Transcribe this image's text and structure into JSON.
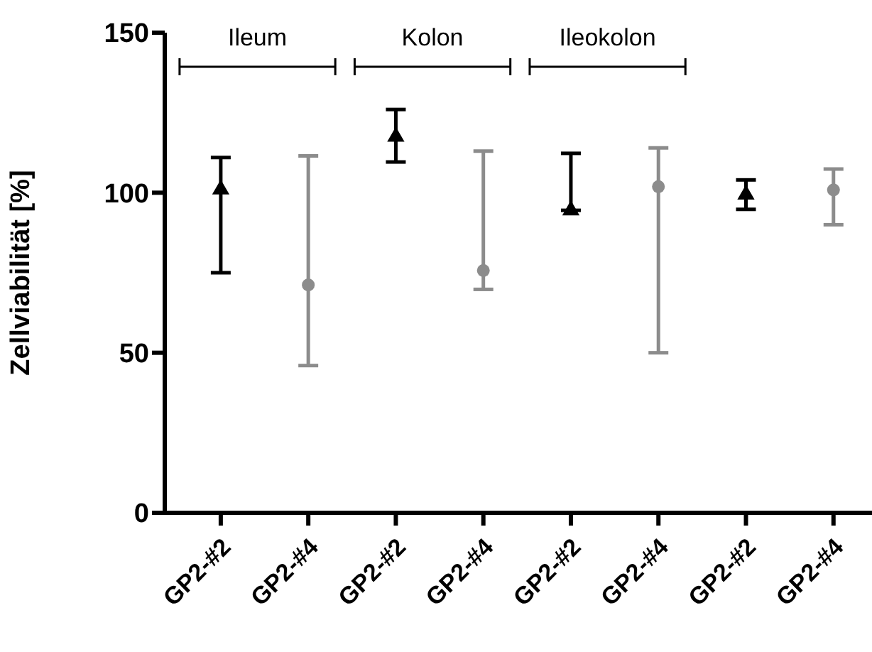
{
  "chart_data": {
    "type": "scatter",
    "ylabel": "Zellviabilität [%]",
    "categories": [
      "GP2-#2",
      "GP2-#4",
      "GP2-#2",
      "GP2-#4",
      "GP2-#2",
      "GP2-#4",
      "GP2-#2",
      "GP2-#4"
    ],
    "series": [
      {
        "color": "#000000",
        "marker": "triangle",
        "values": [
          101,
          null,
          117.5,
          null,
          94.5,
          null,
          99.4,
          null
        ],
        "errors": [
          [
            75,
            111
          ],
          null,
          [
            109.6,
            126
          ],
          null,
          [
            94.5,
            112.3
          ],
          null,
          [
            94.8,
            104
          ],
          null
        ]
      },
      {
        "color": "#8c8c8c",
        "marker": "circle",
        "values": [
          null,
          71.2,
          null,
          75.7,
          null,
          101.9,
          null,
          100.9
        ],
        "errors": [
          null,
          [
            46,
            111.5
          ],
          null,
          [
            69.8,
            113
          ],
          null,
          [
            50,
            114
          ],
          null,
          [
            90,
            107.4
          ]
        ]
      }
    ],
    "ylim": [
      0,
      150
    ],
    "yticks": [
      0,
      50,
      100,
      150
    ],
    "annotations": [
      "Ileum",
      "Kolon",
      "Ileokolon"
    ]
  }
}
